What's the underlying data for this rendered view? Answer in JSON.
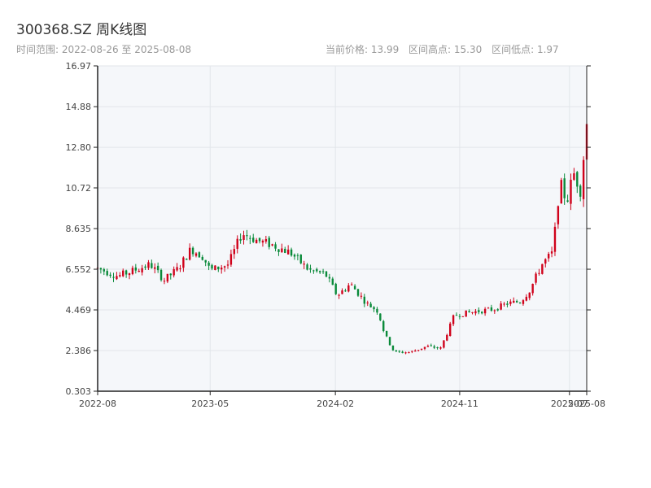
{
  "header": {
    "title": "300368.SZ 周K线图",
    "date_range": "时间范围: 2022-08-26 至 2025-08-08",
    "current_price": "当前价格: 13.99",
    "range_high": "区间高点: 15.30",
    "range_low": "区间低点: 1.97"
  },
  "colors": {
    "up": "#d0021b",
    "down": "#0a8a3a",
    "plot_bg": "#f5f7fa",
    "grid": "#e2e6ea",
    "axis": "#222"
  },
  "chart_data": {
    "type": "candlestick",
    "title": "300368.SZ 周K线图",
    "x_range": [
      "2022-08-26",
      "2025-08-08"
    ],
    "ylim": [
      0.303,
      16.97
    ],
    "y_ticks": [
      "0.303",
      "2.386",
      "4.469",
      "6.552",
      "8.635",
      "10.72",
      "12.80",
      "14.88",
      "16.97"
    ],
    "x_ticks": [
      {
        "label": "2022-08",
        "date": "2022-08-26"
      },
      {
        "label": "2023-05",
        "date": "2023-05-01"
      },
      {
        "label": "2024-02",
        "date": "2024-02-01"
      },
      {
        "label": "2024-11",
        "date": "2024-11-01"
      },
      {
        "label": "2025-07",
        "date": "2025-07-01"
      },
      {
        "label": "2025-08",
        "date": "2025-08-08"
      }
    ],
    "grid": true,
    "anchors": [
      {
        "date": "2022-08-26",
        "close": 6.6
      },
      {
        "date": "2022-10-10",
        "close": 6.2
      },
      {
        "date": "2022-11-15",
        "close": 6.5
      },
      {
        "date": "2022-12-20",
        "close": 6.8
      },
      {
        "date": "2023-01-20",
        "close": 6.0
      },
      {
        "date": "2023-02-20",
        "close": 6.6
      },
      {
        "date": "2023-03-20",
        "close": 7.6
      },
      {
        "date": "2023-04-15",
        "close": 7.2
      },
      {
        "date": "2023-05-01",
        "close": 6.5
      },
      {
        "date": "2023-06-10",
        "close": 6.8
      },
      {
        "date": "2023-07-10",
        "close": 8.4
      },
      {
        "date": "2023-08-15",
        "close": 8.0
      },
      {
        "date": "2023-09-15",
        "close": 7.8
      },
      {
        "date": "2023-10-25",
        "close": 7.4
      },
      {
        "date": "2023-12-05",
        "close": 6.5
      },
      {
        "date": "2024-01-10",
        "close": 6.3
      },
      {
        "date": "2024-02-05",
        "close": 5.2
      },
      {
        "date": "2024-03-05",
        "close": 5.8
      },
      {
        "date": "2024-04-10",
        "close": 4.8
      },
      {
        "date": "2024-05-05",
        "close": 4.4
      },
      {
        "date": "2024-05-20",
        "close": 3.2
      },
      {
        "date": "2024-06-10",
        "close": 2.3
      },
      {
        "date": "2024-07-15",
        "close": 2.3
      },
      {
        "date": "2024-08-20",
        "close": 2.6
      },
      {
        "date": "2024-09-20",
        "close": 2.5
      },
      {
        "date": "2024-10-10",
        "close": 3.6
      },
      {
        "date": "2024-10-20",
        "close": 4.2
      },
      {
        "date": "2024-12-10",
        "close": 4.4
      },
      {
        "date": "2025-01-15",
        "close": 4.5
      },
      {
        "date": "2025-02-15",
        "close": 4.8
      },
      {
        "date": "2025-03-15",
        "close": 4.9
      },
      {
        "date": "2025-04-05",
        "close": 5.5
      },
      {
        "date": "2025-05-01",
        "close": 6.8
      },
      {
        "date": "2025-05-25",
        "close": 7.4
      },
      {
        "date": "2025-06-10",
        "close": 11.0
      },
      {
        "date": "2025-06-25",
        "close": 10.0
      },
      {
        "date": "2025-07-10",
        "close": 11.5
      },
      {
        "date": "2025-07-25",
        "close": 10.6
      },
      {
        "date": "2025-08-08",
        "close": 13.99
      }
    ]
  }
}
